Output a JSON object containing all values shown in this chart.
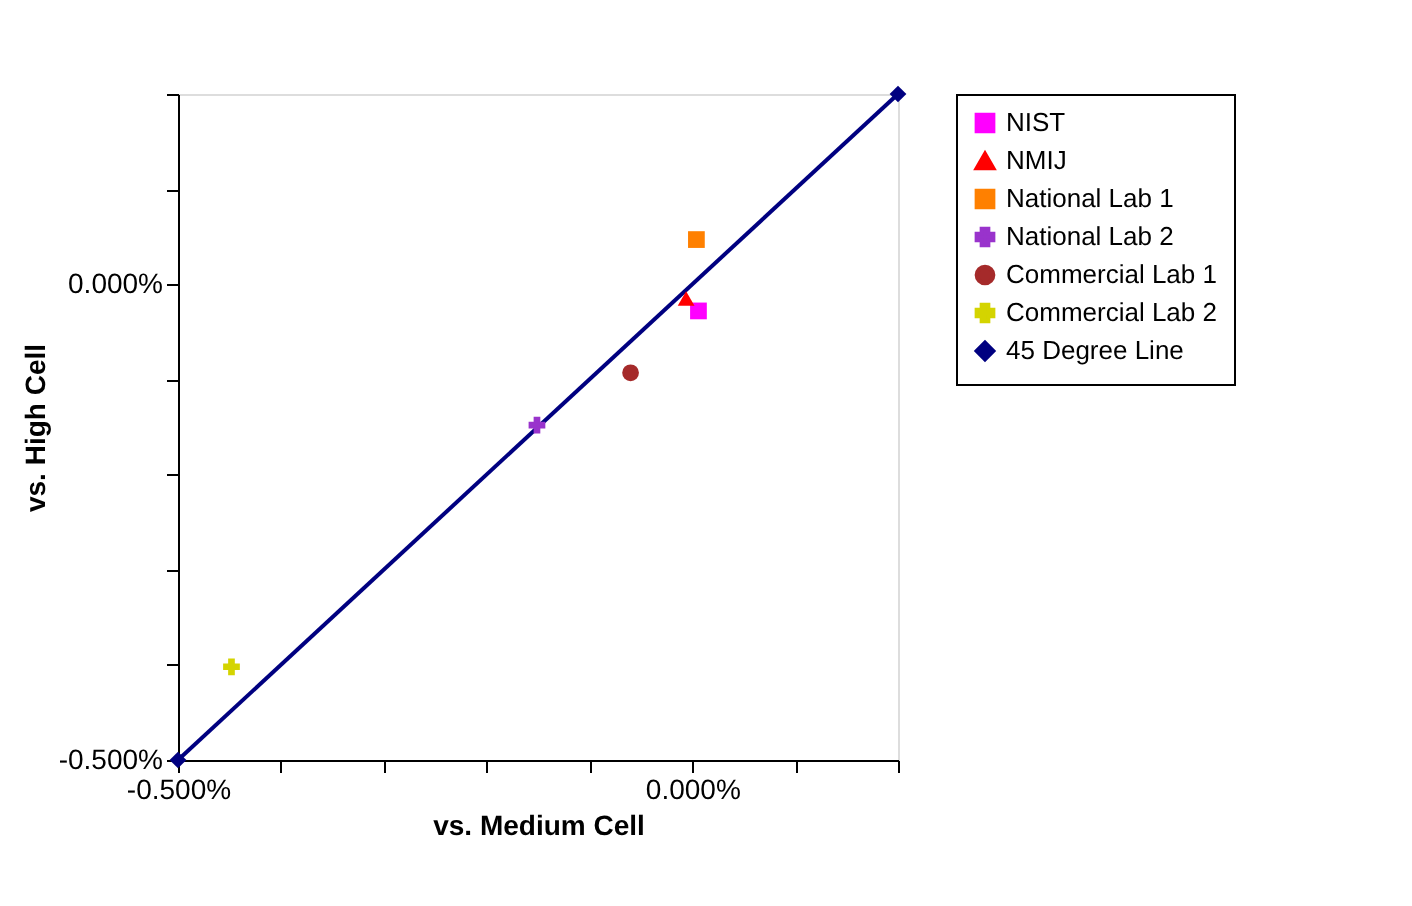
{
  "chart_data": {
    "type": "scatter",
    "xlabel": "vs. Medium Cell",
    "ylabel": "vs. High Cell",
    "xlim": [
      -0.5,
      0.2
    ],
    "ylim": [
      -0.5,
      0.2
    ],
    "xticks": [
      {
        "value": -0.5,
        "label": "-0.500%"
      },
      {
        "value": -0.4,
        "label": null
      },
      {
        "value": -0.3,
        "label": null
      },
      {
        "value": -0.2,
        "label": null
      },
      {
        "value": -0.1,
        "label": null
      },
      {
        "value": 0,
        "label": "0.000%"
      },
      {
        "value": 0.1,
        "label": null
      },
      {
        "value": 0.2,
        "label": null
      }
    ],
    "yticks": [
      {
        "value": -0.5,
        "label": "-0.500%"
      },
      {
        "value": -0.4,
        "label": null
      },
      {
        "value": -0.3,
        "label": null
      },
      {
        "value": -0.2,
        "label": null
      },
      {
        "value": -0.1,
        "label": null
      },
      {
        "value": 0,
        "label": "0.000%"
      },
      {
        "value": 0.1,
        "label": null
      },
      {
        "value": 0.2,
        "label": null
      }
    ],
    "grid": false,
    "legend": "right",
    "series": [
      {
        "name": "NIST",
        "color": "#ff00ff",
        "marker": "square",
        "x": [
          0.006
        ],
        "values": [
          -0.028
        ]
      },
      {
        "name": "NMIJ",
        "color": "#ff0000",
        "marker": "triangle",
        "x": [
          -0.006
        ],
        "values": [
          -0.015
        ]
      },
      {
        "name": "National Lab 1",
        "color": "#ff8000",
        "marker": "square",
        "x": [
          0.004
        ],
        "values": [
          0.047
        ]
      },
      {
        "name": "National Lab 2",
        "color": "#9933cc",
        "marker": "cross",
        "x": [
          -0.151
        ],
        "values": [
          -0.148
        ]
      },
      {
        "name": "Commercial Lab 1",
        "color": "#a52a2a",
        "marker": "circle",
        "x": [
          -0.06
        ],
        "values": [
          -0.093
        ]
      },
      {
        "name": "Commercial Lab 2",
        "color": "#d4d400",
        "marker": "cross",
        "x": [
          -0.448
        ],
        "values": [
          -0.402
        ]
      },
      {
        "name": "45 Degree Line",
        "type": "line",
        "color": "#000080",
        "marker": "diamond",
        "x": [
          -0.5,
          0.2
        ],
        "values": [
          -0.5,
          0.2
        ]
      }
    ]
  }
}
